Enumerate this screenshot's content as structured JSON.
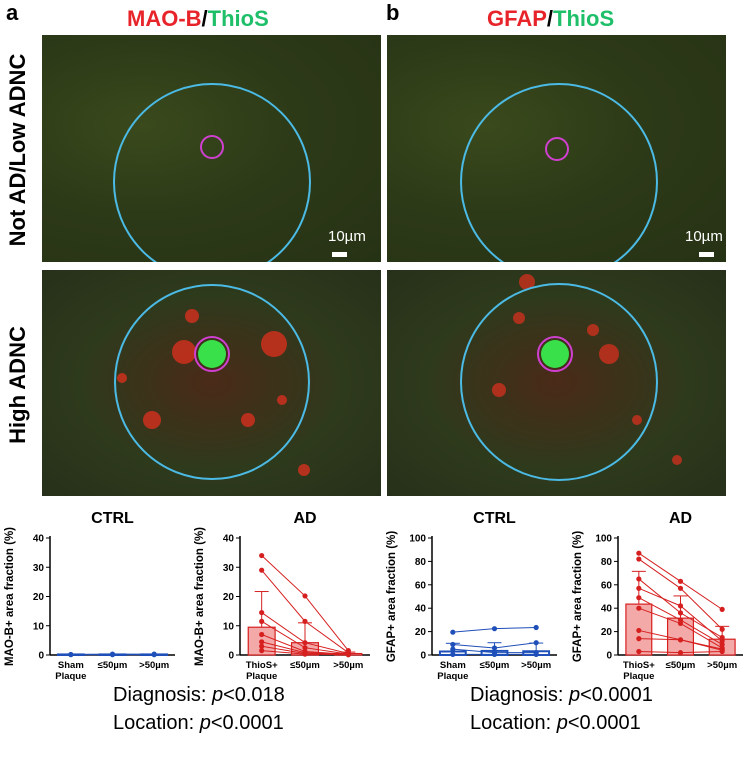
{
  "panel_a": {
    "letter": "a",
    "header_marker": "MAO-B",
    "header_slash": "/",
    "header_stain": "ThioS"
  },
  "panel_b": {
    "letter": "b",
    "header_marker": "GFAP",
    "header_slash": "/",
    "header_stain": "ThioS"
  },
  "row_labels": {
    "top": "Not AD/Low ADNC",
    "bottom": "High ADNC"
  },
  "scale_bar": "10µm",
  "colors": {
    "red": "#e8242b",
    "green": "#1fbf6a",
    "blue": "#1f4fb8",
    "cyan": "#4bbbe6",
    "magenta": "#d040d0",
    "ad_bar_fill": "#f4a9a9",
    "ad_line": "#d62020"
  },
  "stats": {
    "a_diag_prefix": "Diagnosis: ",
    "a_diag_p": "p",
    "a_diag_val": "<0.018",
    "a_loc_prefix": "Location: ",
    "a_loc_p": "p",
    "a_loc_val": "<0.0001",
    "b_diag_prefix": "Diagnosis: ",
    "b_diag_p": "p",
    "b_diag_val": "<0.0001",
    "b_loc_prefix": "Location: ",
    "b_loc_p": "p",
    "b_loc_val": "<0.0001"
  },
  "chart_data": [
    {
      "id": "c1",
      "type": "bar",
      "title": "CTRL",
      "ylabel": "MAO-B+ area fraction (%)",
      "categories": [
        "Sham\nPlaque",
        "≤50µm",
        ">50µm"
      ],
      "ylim": [
        0,
        40
      ],
      "yticks": [
        0,
        10,
        20,
        30,
        40
      ],
      "style": "ctrl",
      "means": [
        0.2,
        0.2,
        0.2
      ],
      "sd": [
        0,
        0,
        0
      ],
      "subjects": [
        [
          0.2,
          0.3,
          0.3
        ],
        [
          0.1,
          0.1,
          0.1
        ]
      ]
    },
    {
      "id": "c2",
      "type": "bar",
      "title": "AD",
      "ylabel": "MAO-B+ area fraction (%)",
      "categories": [
        "ThioS+\nPlaque",
        "≤50µm",
        ">50µm"
      ],
      "ylim": [
        0,
        40
      ],
      "yticks": [
        0,
        10,
        20,
        30,
        40
      ],
      "style": "ad",
      "means": [
        9.5,
        4.2,
        0.5
      ],
      "sd": [
        12.2,
        6.8,
        0.5
      ],
      "subjects": [
        [
          34,
          20.2,
          1.5
        ],
        [
          29,
          11.5,
          0.8
        ],
        [
          14.5,
          4.2,
          0.5
        ],
        [
          11.5,
          2.5,
          0.3
        ],
        [
          7,
          1.2,
          0.2
        ],
        [
          4.5,
          0.8,
          0.2
        ],
        [
          3,
          0.5,
          0.1
        ],
        [
          1.5,
          0.3,
          0.1
        ]
      ]
    },
    {
      "id": "c3",
      "type": "bar",
      "title": "CTRL",
      "ylabel": "GFAP+ area fraction (%)",
      "categories": [
        "Sham\nPlaque",
        "≤50µm",
        ">50µm"
      ],
      "ylim": [
        0,
        100
      ],
      "yticks": [
        0,
        20,
        40,
        60,
        80,
        100
      ],
      "style": "ctrl",
      "means": [
        3,
        3.5,
        3.2
      ],
      "sd": [
        7,
        7,
        7
      ],
      "subjects": [
        [
          19.5,
          22.5,
          23.5
        ],
        [
          9,
          6,
          10.5
        ],
        [
          5,
          2,
          2
        ],
        [
          0.5,
          0.5,
          0.5
        ]
      ]
    },
    {
      "id": "c4",
      "type": "bar",
      "title": "AD",
      "ylabel": "GFAP+ area fraction (%)",
      "categories": [
        "ThioS+\nPlaque",
        "≤50µm",
        ">50µm"
      ],
      "ylim": [
        0,
        100
      ],
      "yticks": [
        0,
        20,
        40,
        60,
        80,
        100
      ],
      "style": "ad",
      "means": [
        43.5,
        31.5,
        13.5
      ],
      "sd": [
        28,
        19,
        11
      ],
      "subjects": [
        [
          87,
          63,
          39
        ],
        [
          82,
          57,
          22
        ],
        [
          65,
          36,
          15
        ],
        [
          57,
          42,
          12
        ],
        [
          49,
          30,
          9
        ],
        [
          40,
          27,
          6
        ],
        [
          21,
          13,
          4
        ],
        [
          14,
          13,
          5
        ],
        [
          3,
          2,
          3
        ]
      ]
    }
  ]
}
